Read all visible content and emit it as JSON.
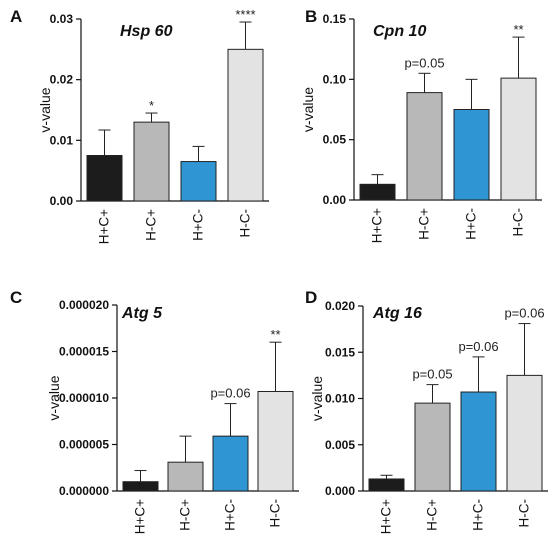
{
  "chart_data": [
    {
      "type": "bar",
      "panel": "A",
      "title": "Hsp 60",
      "ylabel": "v-value",
      "ylim": [
        0,
        0.03
      ],
      "ticks": [
        "0.00",
        "0.01",
        "0.02",
        "0.03"
      ],
      "tick_values": [
        0,
        0.01,
        0.02,
        0.03
      ],
      "categories": [
        "H+C+",
        "H-C+",
        "H+C-",
        "H-C-"
      ],
      "values": [
        0.0075,
        0.013,
        0.0065,
        0.025
      ],
      "errors": [
        0.0042,
        0.0015,
        0.0025,
        0.0045
      ],
      "colors": [
        "#1c1c1c",
        "#b8b8b8",
        "#2f95d3",
        "#e3e3e3"
      ],
      "annotations": [
        "",
        "*",
        "",
        "****"
      ]
    },
    {
      "type": "bar",
      "panel": "B",
      "title": "Cpn 10",
      "ylabel": "v-value",
      "ylim": [
        0,
        0.15
      ],
      "ticks": [
        "0.00",
        "0.05",
        "0.10",
        "0.15"
      ],
      "tick_values": [
        0,
        0.05,
        0.1,
        0.15
      ],
      "categories": [
        "H+C+",
        "H-C+",
        "H+C-",
        "H-C-"
      ],
      "values": [
        0.013,
        0.089,
        0.075,
        0.101
      ],
      "errors": [
        0.008,
        0.016,
        0.025,
        0.034
      ],
      "colors": [
        "#1c1c1c",
        "#b8b8b8",
        "#2f95d3",
        "#e3e3e3"
      ],
      "annotations": [
        "",
        "p=0.05",
        "",
        "**"
      ]
    },
    {
      "type": "bar",
      "panel": "C",
      "title": "Atg 5",
      "ylabel": "v-value",
      "ylim": [
        0,
        2e-05
      ],
      "ticks": [
        "0.000000",
        "0.000005",
        "0.000010",
        "0.000015",
        "0.000020"
      ],
      "tick_values": [
        0,
        5e-06,
        1e-05,
        1.5e-05,
        2e-05
      ],
      "categories": [
        "H+C+",
        "H-C+",
        "H+C-",
        "H-C-"
      ],
      "values": [
        1e-06,
        3.1e-06,
        5.9e-06,
        1.07e-05
      ],
      "errors": [
        1.2e-06,
        2.8e-06,
        3.5e-06,
        5.3e-06
      ],
      "colors": [
        "#1c1c1c",
        "#b8b8b8",
        "#2f95d3",
        "#e3e3e3"
      ],
      "annotations": [
        "",
        "",
        "p=0.06",
        "**"
      ]
    },
    {
      "type": "bar",
      "panel": "D",
      "title": "Atg 16",
      "ylabel": "v-value",
      "ylim": [
        0,
        0.02
      ],
      "ticks": [
        "0.000",
        "0.005",
        "0.010",
        "0.015",
        "0.020"
      ],
      "tick_values": [
        0,
        0.005,
        0.01,
        0.015,
        0.02
      ],
      "categories": [
        "H+C+",
        "H-C+",
        "H+C-",
        "H-C-"
      ],
      "values": [
        0.0013,
        0.0095,
        0.0107,
        0.0125
      ],
      "errors": [
        0.0004,
        0.002,
        0.0038,
        0.0056
      ],
      "colors": [
        "#1c1c1c",
        "#b8b8b8",
        "#2f95d3",
        "#e3e3e3"
      ],
      "annotations": [
        "",
        "p=0.05",
        "p=0.06",
        "p=0.06"
      ]
    }
  ]
}
